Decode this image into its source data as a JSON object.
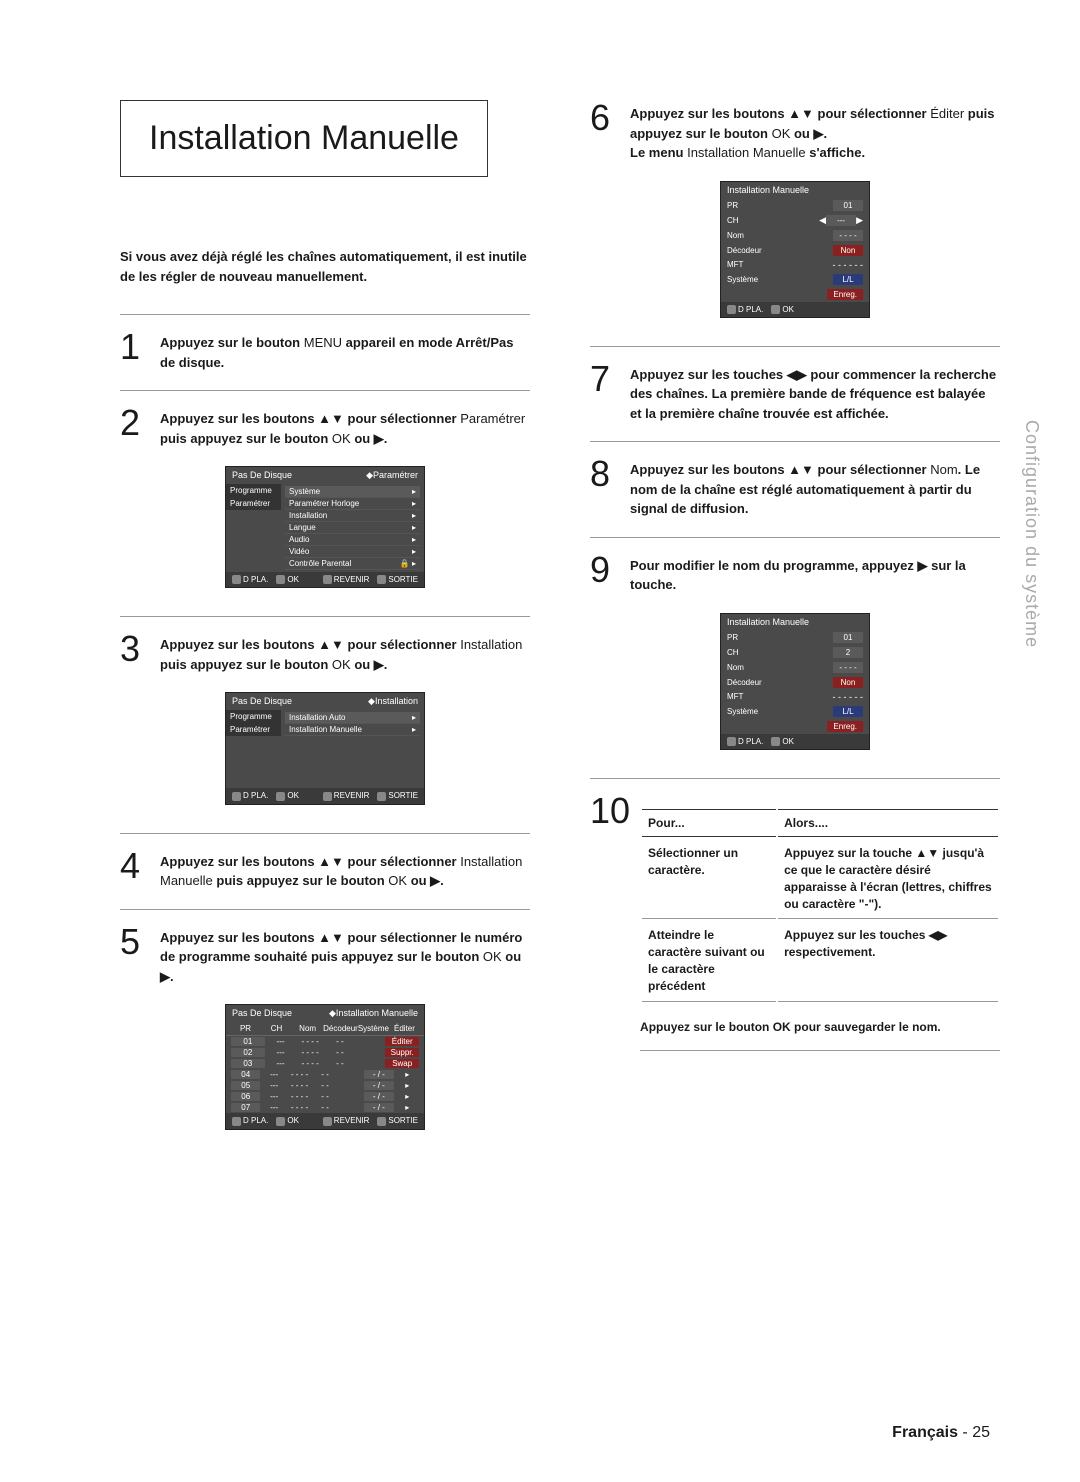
{
  "title": "Installation Manuelle",
  "intro": "Si vous avez déjà réglé les chaînes automatiquement, il est inutile de les régler de nouveau manuellement.",
  "side_label": "Configuration du système",
  "footer": {
    "lang": "Français",
    "page": "25"
  },
  "steps": {
    "s1": {
      "n": "1",
      "a": "Appuyez sur le bouton ",
      "b": "MENU",
      "c": " appareil en mode Arrêt/Pas de disque."
    },
    "s2": {
      "n": "2",
      "a": "Appuyez sur les boutons ▲▼ pour sélectionner ",
      "b": "Paramétrer",
      "c": " puis appuyez sur le bouton ",
      "d": "OK",
      "e": " ou ▶."
    },
    "s3": {
      "n": "3",
      "a": "Appuyez sur les boutons ▲▼ pour sélectionner ",
      "b": "Installation",
      "c": " puis appuyez sur le bouton ",
      "d": "OK",
      "e": " ou ▶."
    },
    "s4": {
      "n": "4",
      "a": "Appuyez sur les boutons ▲▼ pour sélectionner ",
      "b": "Installation Manuelle",
      "c": " puis appuyez sur le bouton ",
      "d": "OK",
      "e": " ou ▶."
    },
    "s5": {
      "n": "5",
      "a": "Appuyez sur les boutons ▲▼ pour sélectionner le numéro de programme souhaité puis appuyez sur le bouton ",
      "d": "OK",
      "e": " ou ▶."
    },
    "s6": {
      "n": "6",
      "a": "Appuyez sur les boutons ▲▼ pour sélectionner ",
      "b": "Éditer",
      "c": " puis appuyez sur le bouton ",
      "d": "OK",
      "e": " ou ▶.",
      "f": "Le menu ",
      "g": "Installation Manuelle",
      "h": " s'affiche."
    },
    "s7": {
      "n": "7",
      "a": "Appuyez sur les touches ◀▶ pour commencer la recherche des chaînes. La première bande de fréquence est balayée et la première chaîne trouvée est affichée."
    },
    "s8": {
      "n": "8",
      "a": "Appuyez sur les boutons ▲▼ pour sélectionner ",
      "b": "Nom",
      "c": ". Le nom de la chaîne est réglé automatiquement à partir du signal de diffusion."
    },
    "s9": {
      "n": "9",
      "a": "Pour modifier le nom du programme, appuyez ▶ sur la touche."
    },
    "s10": {
      "n": "10"
    },
    "save": "Appuyez sur le bouton OK pour sauvegarder le nom."
  },
  "table10": {
    "h1": "Pour...",
    "h2": "Alors....",
    "r1a": "Sélectionner un caractère.",
    "r1b": "Appuyez sur la touche ▲▼ jusqu'à ce que le caractère désiré apparaisse à l'écran (lettres, chiffres ou caractère \"-\").",
    "r2a": "Atteindre le caractère suivant ou le caractère précédent",
    "r2b": "Appuyez sur les touches ◀▶ respectivement."
  },
  "osd2": {
    "header_l": "Pas De Disque",
    "header_r": "◆Paramétrer",
    "tab1": "Programme",
    "tab2": "Paramétrer",
    "i1": "Système",
    "i2": "Paramétrer Horloge",
    "i3": "Installation",
    "i4": "Langue",
    "i5": "Audio",
    "i6": "Vidéo",
    "i7": "Contrôle Parental",
    "f1": "D PLA.",
    "f2": "OK",
    "f3": "REVENIR",
    "f4": "SORTIE"
  },
  "osd3": {
    "header_l": "Pas De Disque",
    "header_r": "◆Installation",
    "tab1": "Programme",
    "tab2": "Paramétrer",
    "i1": "Installation Auto",
    "i2": "Installation Manuelle",
    "f1": "D PLA.",
    "f2": "OK",
    "f3": "REVENIR",
    "f4": "SORTIE"
  },
  "osd5": {
    "header_l": "Pas De Disque",
    "header_r": "◆Installation Manuelle",
    "cols": {
      "c1": "PR",
      "c2": "CH",
      "c3": "Nom",
      "c4": "Décodeur",
      "c5": "Système",
      "c6": "Éditer"
    },
    "rows": [
      {
        "pr": "01",
        "ch": "---",
        "nom": "- - - -",
        "dec": "- -",
        "btn": "Éditer"
      },
      {
        "pr": "02",
        "ch": "---",
        "nom": "- - - -",
        "dec": "- -",
        "btn": "Suppr."
      },
      {
        "pr": "03",
        "ch": "---",
        "nom": "- - - -",
        "dec": "- -",
        "btn": "Swap"
      },
      {
        "pr": "04",
        "ch": "---",
        "nom": "- - - -",
        "dec": "- -",
        "btn": "- / -"
      },
      {
        "pr": "05",
        "ch": "---",
        "nom": "- - - -",
        "dec": "- -",
        "btn": "- / -"
      },
      {
        "pr": "06",
        "ch": "---",
        "nom": "- - - -",
        "dec": "- -",
        "btn": "- / -"
      },
      {
        "pr": "07",
        "ch": "---",
        "nom": "- - - -",
        "dec": "- -",
        "btn": "- / -"
      }
    ],
    "f1": "D PLA.",
    "f2": "OK",
    "f3": "REVENIR",
    "f4": "SORTIE"
  },
  "osd6": {
    "title": "Installation Manuelle",
    "l1": "PR",
    "v1": "01",
    "l2": "CH",
    "v2": "---",
    "l3": "Nom",
    "v3": "- - - -",
    "l4": "Décodeur",
    "v4": "Non",
    "l5": "MFT",
    "v5": "- - -  - - -",
    "l6": "Système",
    "v6": "L/L",
    "btn": "Enreg.",
    "f1": "D PLA.",
    "f2": "OK"
  },
  "osd9": {
    "title": "Installation Manuelle",
    "l1": "PR",
    "v1": "01",
    "l2": "CH",
    "v2": "2",
    "l3": "Nom",
    "v3": "- - - -",
    "l4": "Décodeur",
    "v4": "Non",
    "l5": "MFT",
    "v5": "- - -  - - -",
    "l6": "Système",
    "v6": "L/L",
    "btn": "Enreg.",
    "f1": "D PLA.",
    "f2": "OK"
  }
}
